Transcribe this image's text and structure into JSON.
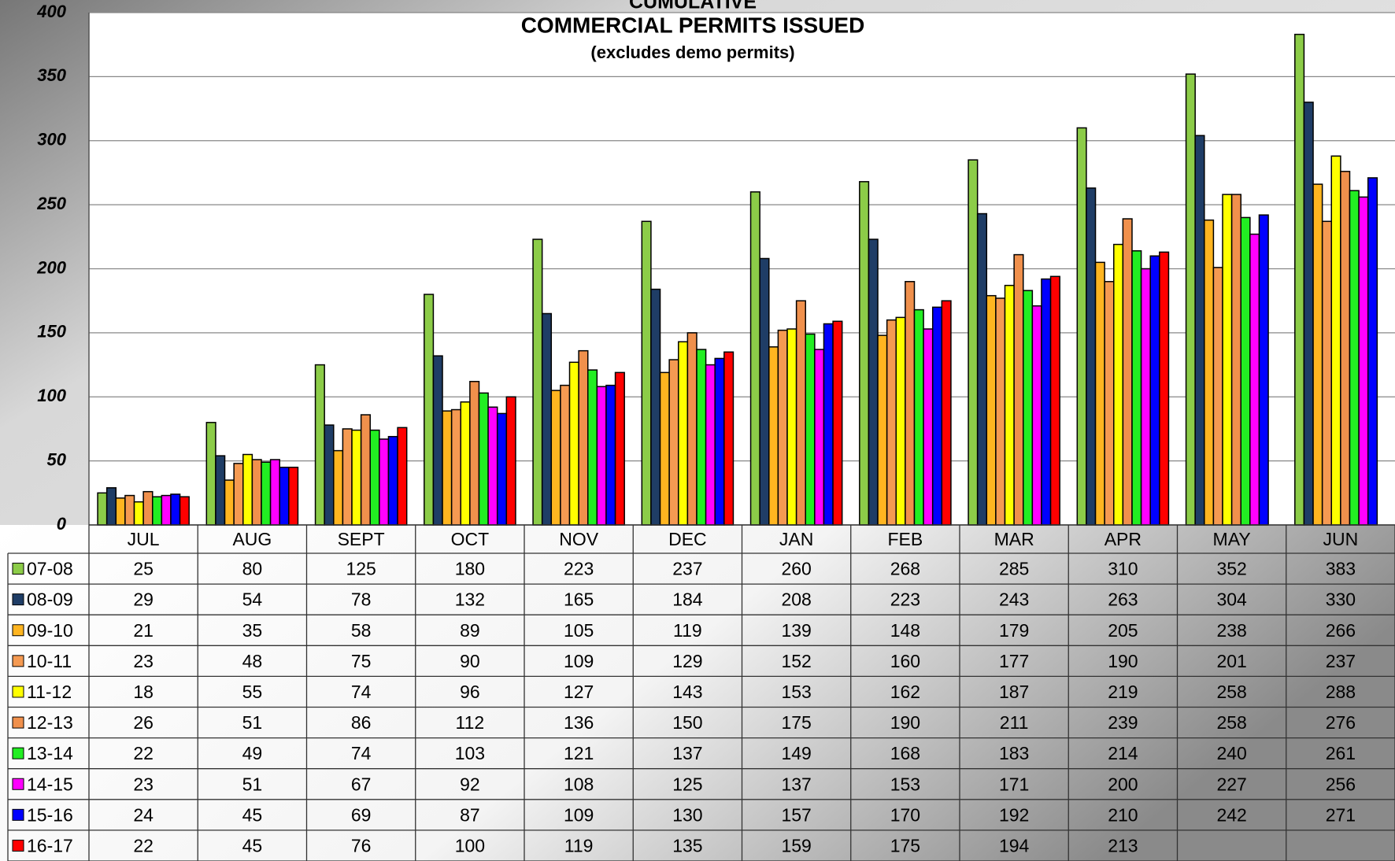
{
  "chart_data": {
    "type": "bar",
    "pretitle": "CUMULATIVE",
    "title": "COMMERCIAL PERMITS ISSUED",
    "subtitle": "(excludes demo permits)",
    "categories": [
      "JUL",
      "AUG",
      "SEPT",
      "OCT",
      "NOV",
      "DEC",
      "JAN",
      "FEB",
      "MAR",
      "APR",
      "MAY",
      "JUN"
    ],
    "series": [
      {
        "name": "07-08",
        "color": "#8ccc48",
        "values": [
          25,
          80,
          125,
          180,
          223,
          237,
          260,
          268,
          285,
          310,
          352,
          383
        ]
      },
      {
        "name": "08-09",
        "color": "#1f3d66",
        "values": [
          29,
          54,
          78,
          132,
          165,
          184,
          208,
          223,
          243,
          263,
          304,
          330
        ]
      },
      {
        "name": "09-10",
        "color": "#ffb520",
        "values": [
          21,
          35,
          58,
          89,
          105,
          119,
          139,
          148,
          179,
          205,
          238,
          266
        ]
      },
      {
        "name": "10-11",
        "color": "#f59a52",
        "values": [
          23,
          48,
          75,
          90,
          109,
          129,
          152,
          160,
          177,
          190,
          201,
          237
        ]
      },
      {
        "name": "11-12",
        "color": "#ffff00",
        "values": [
          18,
          55,
          74,
          96,
          127,
          143,
          153,
          162,
          187,
          219,
          258,
          288
        ]
      },
      {
        "name": "12-13",
        "color": "#f0904c",
        "values": [
          26,
          51,
          86,
          112,
          136,
          150,
          175,
          190,
          211,
          239,
          258,
          276
        ]
      },
      {
        "name": "13-14",
        "color": "#22ee22",
        "values": [
          22,
          49,
          74,
          103,
          121,
          137,
          149,
          168,
          183,
          214,
          240,
          261
        ]
      },
      {
        "name": "14-15",
        "color": "#ff00ff",
        "values": [
          23,
          51,
          67,
          92,
          108,
          125,
          137,
          153,
          171,
          200,
          227,
          256
        ]
      },
      {
        "name": "15-16",
        "color": "#0000ff",
        "values": [
          24,
          45,
          69,
          87,
          109,
          130,
          157,
          170,
          192,
          210,
          242,
          271
        ]
      },
      {
        "name": "16-17",
        "color": "#ff0000",
        "values": [
          22,
          45,
          76,
          100,
          119,
          135,
          159,
          175,
          194,
          213,
          null,
          null
        ]
      }
    ],
    "ylim": [
      0,
      400
    ],
    "yticks": [
      0,
      50,
      100,
      150,
      200,
      250,
      300,
      350,
      400
    ],
    "grid": true
  }
}
